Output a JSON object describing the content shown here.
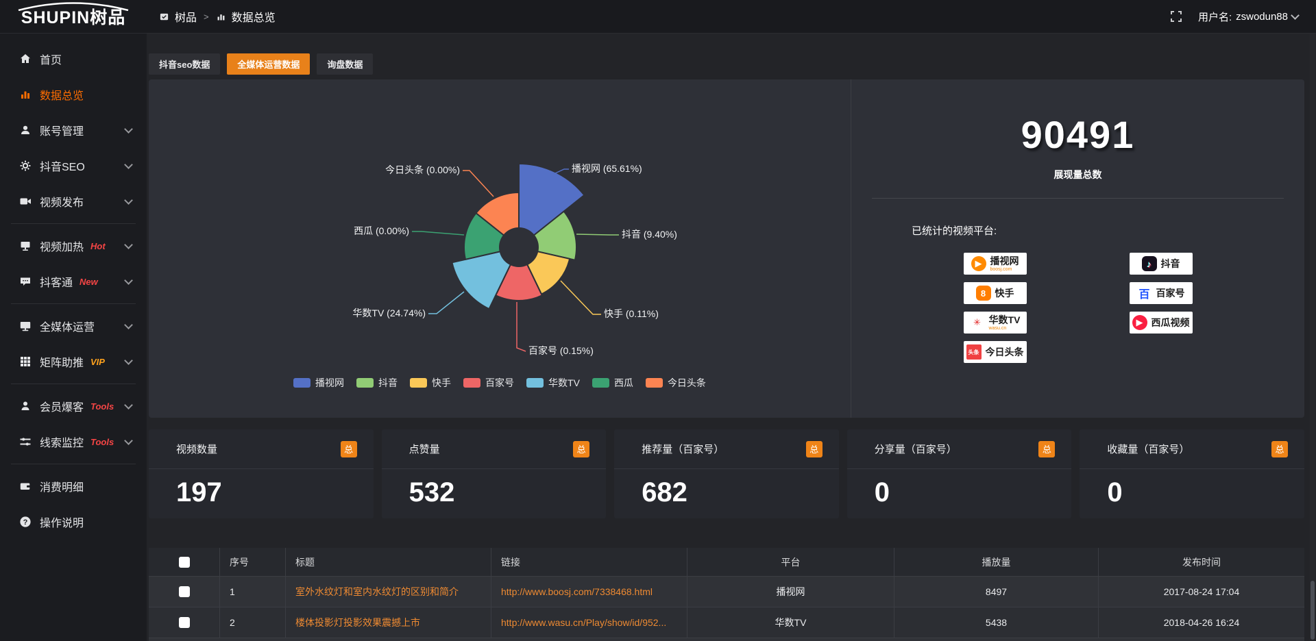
{
  "topbar": {
    "logo": "SHUPIN树品",
    "breadcrumb": {
      "root": "树品",
      "sep": ">",
      "current": "数据总览"
    },
    "user_label": "用户名:",
    "username": "zswodun88"
  },
  "sidebar": {
    "items": [
      {
        "label": "首页",
        "icon": "home"
      },
      {
        "label": "数据总览",
        "icon": "chart",
        "active": true
      },
      {
        "label": "账号管理",
        "icon": "user",
        "chevron": true
      },
      {
        "label": "抖音SEO",
        "icon": "gear",
        "chevron": true
      },
      {
        "label": "视频发布",
        "icon": "video",
        "chevron": true
      },
      {
        "divider": true
      },
      {
        "label": "视频加热",
        "icon": "screen",
        "tag": "Hot",
        "tag_color": "#f54545",
        "chevron": true
      },
      {
        "label": "抖客通",
        "icon": "chat",
        "tag": "New",
        "tag_color": "#f54545",
        "chevron": true
      },
      {
        "divider": true
      },
      {
        "label": "全媒体运营",
        "icon": "monitor",
        "chevron": true
      },
      {
        "label": "矩阵助推",
        "icon": "grid",
        "tag": "VIP",
        "tag_color": "#ffa21d",
        "chevron": true
      },
      {
        "divider": true
      },
      {
        "label": "会员爆客",
        "icon": "member",
        "tag": "Tools",
        "tag_color": "#f54545",
        "chevron": true
      },
      {
        "label": "线索监控",
        "icon": "sliders",
        "tag": "Tools",
        "tag_color": "#f54545",
        "chevron": true
      },
      {
        "divider": true
      },
      {
        "label": "消费明细",
        "icon": "wallet"
      },
      {
        "label": "操作说明",
        "icon": "question"
      }
    ]
  },
  "tabs": [
    {
      "label": "抖音seo数据",
      "active": false
    },
    {
      "label": "全媒体运营数据",
      "active": true
    },
    {
      "label": "询盘数据",
      "active": false
    }
  ],
  "chart_data": {
    "type": "pie",
    "variant": "rose",
    "legend_position": "bottom",
    "items": [
      {
        "name": "播视网",
        "pct": 65.61,
        "color": "#5470c6"
      },
      {
        "name": "抖音",
        "pct": 9.4,
        "color": "#91cc75"
      },
      {
        "name": "快手",
        "pct": 0.11,
        "color": "#fac858"
      },
      {
        "name": "百家号",
        "pct": 0.15,
        "color": "#ee6666"
      },
      {
        "name": "华数TV",
        "pct": 24.74,
        "color": "#73c0de"
      },
      {
        "name": "西瓜",
        "pct": 0.0,
        "color": "#3ba272"
      },
      {
        "name": "今日头条",
        "pct": 0.0,
        "color": "#fc8452"
      }
    ],
    "total": 90491
  },
  "overview": {
    "total": "90491",
    "total_label": "展现量总数",
    "platforms_label": "已统计的视频平台:",
    "platforms_left": [
      {
        "name": "boosj",
        "text": "播视网",
        "sub": "boosj.com",
        "icon": {
          "glyph": "▶",
          "bg": "#ff8a00",
          "fg": "#ffffff",
          "shape": "blob"
        }
      },
      {
        "name": "kuaishou",
        "text": "快手",
        "icon": {
          "glyph": "8",
          "bg": "#ff7e00",
          "fg": "#ffffff",
          "shape": "round"
        }
      },
      {
        "name": "wasu",
        "text": "华数TV",
        "sub": "wasu.cn",
        "icon": {
          "glyph": "✳",
          "bg": "#ffffff",
          "fg": "#e02020",
          "shape": "plain"
        }
      },
      {
        "name": "toutiao",
        "text": "今日头条",
        "icon": {
          "glyph": "头条",
          "bg": "#f04142",
          "fg": "#ffffff",
          "shape": "square"
        }
      }
    ],
    "platforms_right": [
      {
        "name": "douyin",
        "text": "抖音",
        "icon": {
          "glyph": "♪",
          "bg": "#16101e",
          "fg": "#ffffff",
          "shape": "round"
        }
      },
      {
        "name": "baijiahao",
        "text": "百家号",
        "icon": {
          "glyph": "百",
          "bg": "#ffffff",
          "fg": "#1f53ff",
          "shape": "plain"
        }
      },
      {
        "name": "xigua",
        "text": "西瓜视频",
        "icon": {
          "glyph": "▶",
          "bg": "#fa1f41",
          "fg": "#ffffff",
          "shape": "circle"
        }
      }
    ]
  },
  "cards": [
    {
      "label": "视频数量",
      "badge": "总",
      "value": "197"
    },
    {
      "label": "点赞量",
      "badge": "总",
      "value": "532"
    },
    {
      "label": "推荐量（百家号）",
      "badge": "总",
      "value": "682"
    },
    {
      "label": "分享量（百家号）",
      "badge": "总",
      "value": "0"
    },
    {
      "label": "收藏量（百家号）",
      "badge": "总",
      "value": "0"
    }
  ],
  "table": {
    "headers": [
      "序号",
      "标题",
      "链接",
      "平台",
      "播放量",
      "发布时间"
    ],
    "rows": [
      {
        "no": "1",
        "title": "室外水纹灯和室内水纹灯的区别和简介",
        "link": "http://www.boosj.com/7338468.html",
        "platform": "播视网",
        "plays": "8497",
        "time": "2017-08-24 17:04"
      },
      {
        "no": "2",
        "title": "楼体投影灯投影效果震撼上市",
        "link": "http://www.wasu.cn/Play/show/id/952...",
        "platform": "华数TV",
        "plays": "5438",
        "time": "2018-04-26 16:24"
      }
    ]
  }
}
